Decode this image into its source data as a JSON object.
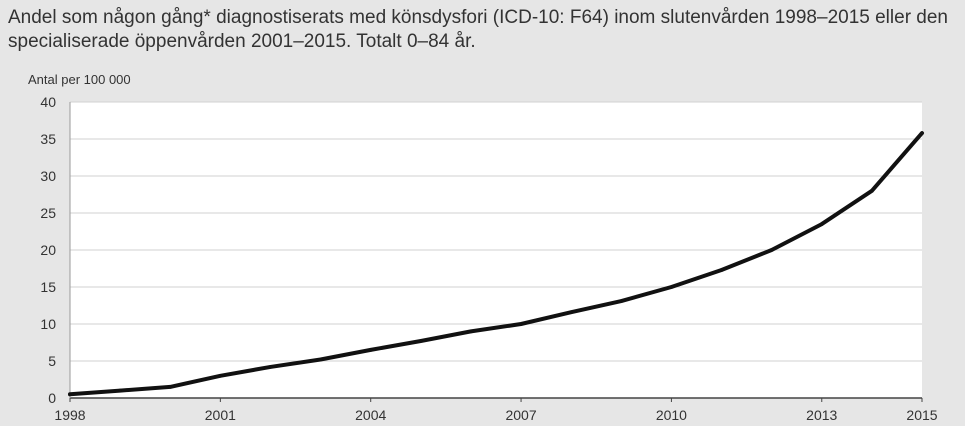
{
  "chart_data": {
    "type": "line",
    "title": "Andel som någon gång* diagnostiserats med könsdysfori (ICD-10: F64) inom slutenvården 1998–2015 eller den specialiserade öppenvården 2001–2015. Totalt 0–84 år.",
    "ylabel": "Antal per 100 000",
    "xlabel": "",
    "ylim": [
      0,
      40
    ],
    "xlim": [
      1998,
      2015
    ],
    "yticks": [
      0,
      5,
      10,
      15,
      20,
      25,
      30,
      35,
      40
    ],
    "xticks": [
      1998,
      2001,
      2004,
      2007,
      2010,
      2013,
      2015
    ],
    "grid": "horizontal",
    "legend": "none",
    "x": [
      1998,
      1999,
      2000,
      2001,
      2002,
      2003,
      2004,
      2005,
      2006,
      2007,
      2008,
      2009,
      2010,
      2011,
      2012,
      2013,
      2014,
      2015
    ],
    "series": [
      {
        "values": [
          0.5,
          1.0,
          1.5,
          3.0,
          4.2,
          5.2,
          6.5,
          7.7,
          9.0,
          10.0,
          11.6,
          13.1,
          15.0,
          17.3,
          20.0,
          23.5,
          28.0,
          35.8
        ]
      }
    ],
    "line_color": "#111111",
    "plot_background": "#ffffff",
    "page_background": "#e6e6e6"
  }
}
